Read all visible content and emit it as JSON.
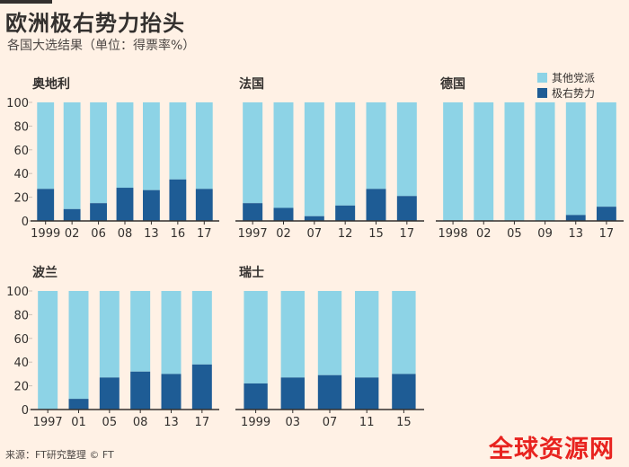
{
  "title": "欧洲极右势力抬头",
  "subtitle": "各国大选结果（单位：得票率%）",
  "legend": {
    "other": "其他党派",
    "far_right": "极右势力"
  },
  "colors": {
    "other": "#8dd3e6",
    "far_right": "#1e5c95",
    "axis": "#33302e",
    "grid": "#ccc1b7",
    "background": "#fff1e5"
  },
  "source": "来源：FT研究整理 © FT",
  "watermark": "全球资源网",
  "chart_data": [
    {
      "type": "bar",
      "stacked": true,
      "title": "奥地利",
      "categories": [
        "1999",
        "02",
        "06",
        "08",
        "13",
        "16",
        "17"
      ],
      "values": [
        27,
        10,
        15,
        28,
        26,
        35,
        27
      ],
      "ylim": [
        0,
        100
      ],
      "yticks": [
        0,
        20,
        40,
        60,
        80,
        100
      ]
    },
    {
      "type": "bar",
      "stacked": true,
      "title": "法国",
      "categories": [
        "1997",
        "02",
        "07",
        "12",
        "15",
        "17"
      ],
      "values": [
        15,
        11,
        4,
        13,
        27,
        21
      ],
      "ylim": [
        0,
        100
      ]
    },
    {
      "type": "bar",
      "stacked": true,
      "title": "德国",
      "categories": [
        "1998",
        "02",
        "05",
        "09",
        "13",
        "17"
      ],
      "values": [
        0,
        0,
        0,
        0,
        5,
        12
      ],
      "ylim": [
        0,
        100
      ]
    },
    {
      "type": "bar",
      "stacked": true,
      "title": "波兰",
      "categories": [
        "1997",
        "01",
        "05",
        "08",
        "13",
        "17"
      ],
      "values": [
        0,
        9,
        27,
        32,
        30,
        38
      ],
      "ylim": [
        0,
        100
      ],
      "yticks": [
        0,
        20,
        40,
        60,
        80,
        100
      ]
    },
    {
      "type": "bar",
      "stacked": true,
      "title": "瑞士",
      "categories": [
        "1999",
        "03",
        "07",
        "11",
        "15"
      ],
      "values": [
        22,
        27,
        29,
        27,
        30
      ],
      "ylim": [
        0,
        100
      ]
    }
  ]
}
